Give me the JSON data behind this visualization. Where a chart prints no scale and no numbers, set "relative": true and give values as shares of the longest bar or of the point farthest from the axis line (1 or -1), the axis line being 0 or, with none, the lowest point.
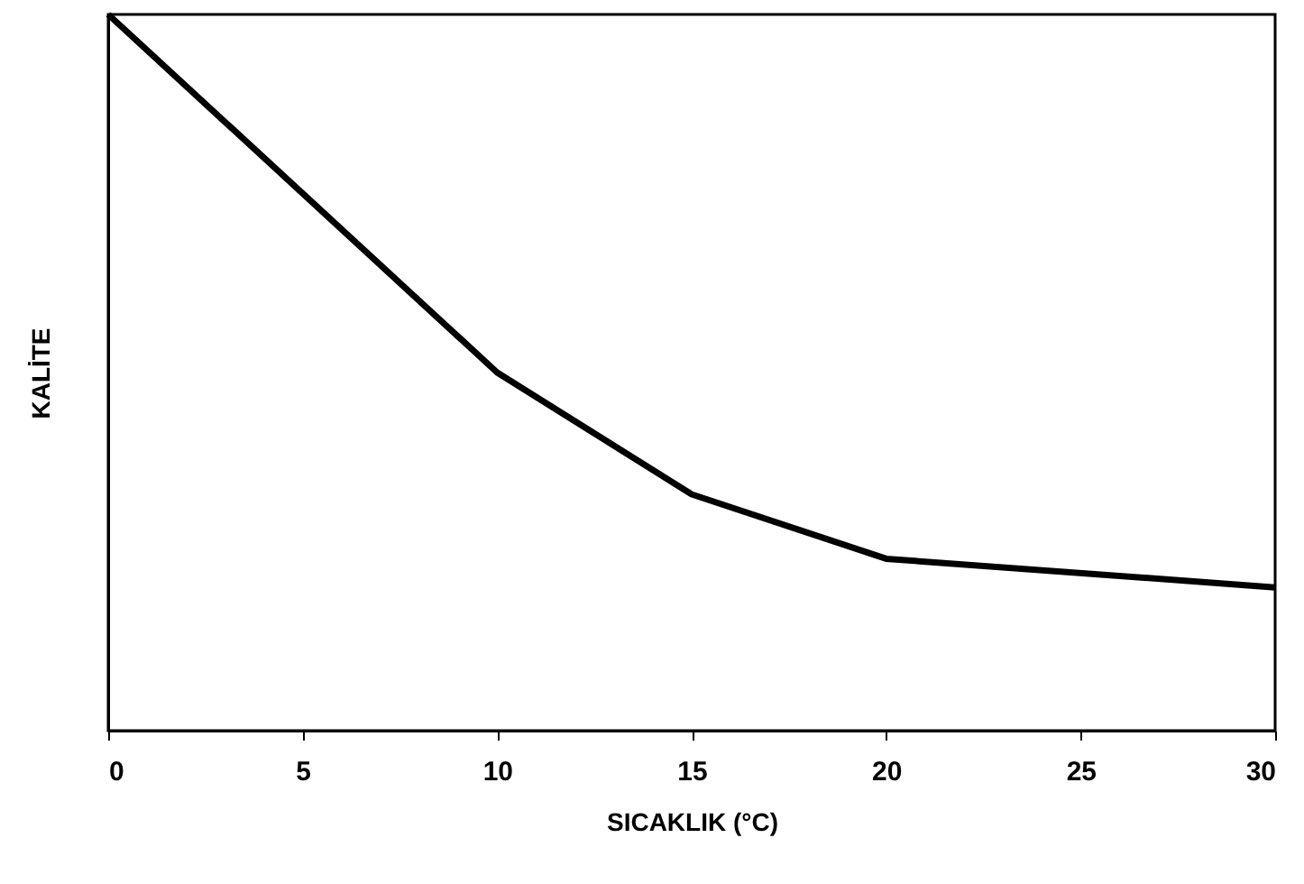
{
  "chart_data": {
    "type": "line",
    "relative": true,
    "xlabel": "SICAKLIK (°C)",
    "ylabel": "KALİTE",
    "x": [
      0,
      10,
      15,
      20,
      30
    ],
    "series": [
      {
        "color": "#000000",
        "values": [
          1,
          0.5,
          0.33,
          0.24,
          0.2
        ]
      }
    ],
    "xlim": [
      0,
      30
    ],
    "xticks": [
      0,
      5,
      10,
      15,
      20,
      25,
      30
    ],
    "grid": false,
    "marker": "none",
    "line_style": "solid"
  }
}
